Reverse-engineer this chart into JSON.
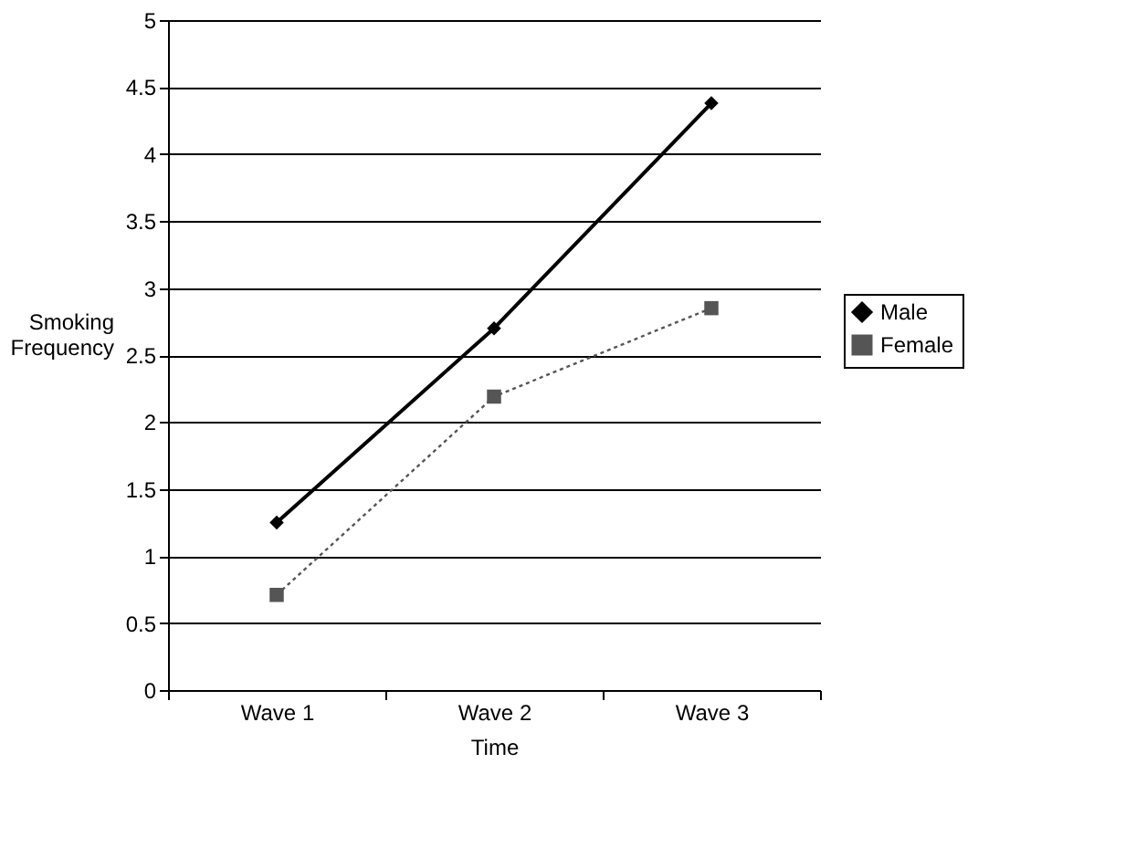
{
  "chart_data": {
    "type": "line",
    "xlabel": "Time",
    "ylabel": "Smoking Frequency",
    "categories": [
      "Wave 1",
      "Wave 2",
      "Wave 3"
    ],
    "series": [
      {
        "name": "Male",
        "color": "#000000",
        "values": [
          1.25,
          2.7,
          4.38
        ],
        "marker": "diamond",
        "line_style": "solid"
      },
      {
        "name": "Female",
        "color": "#555555",
        "values": [
          0.71,
          2.19,
          2.85
        ],
        "marker": "square",
        "line_style": "dotted"
      }
    ],
    "ylim": [
      0,
      5
    ],
    "yticks": [
      0,
      0.5,
      1,
      1.5,
      2,
      2.5,
      3,
      3.5,
      4,
      4.5,
      5
    ],
    "grid": "y",
    "legend": "right"
  }
}
